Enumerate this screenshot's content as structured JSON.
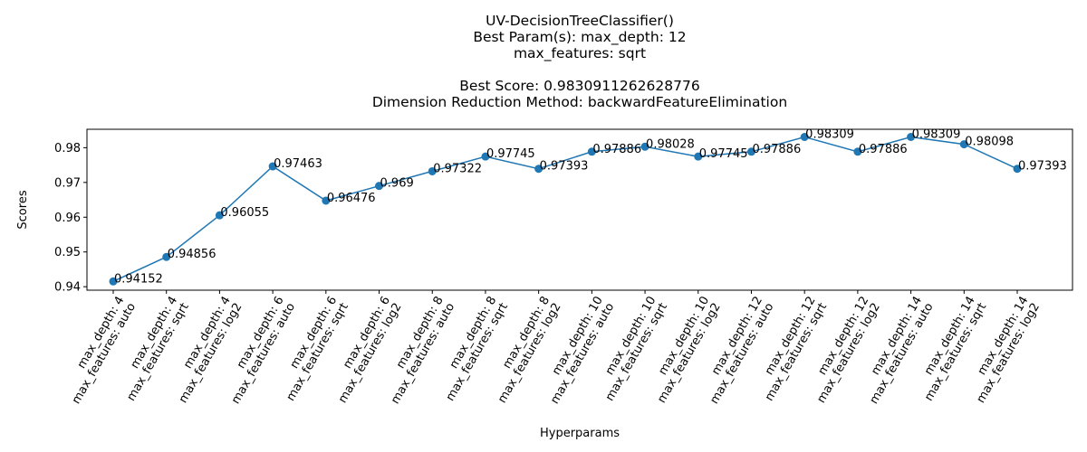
{
  "chart_data": {
    "type": "line",
    "title_lines": [
      "UV-DecisionTreeClassifier()",
      "Best Param(s): max_depth: 12",
      "max_features: sqrt",
      "",
      "Best Score: 0.9830911262628776",
      "Dimension Reduction Method: backwardFeatureElimination"
    ],
    "xlabel": "Hyperparams",
    "ylabel": "Scores",
    "categories": [
      [
        "max_depth: 4",
        "max_features: auto"
      ],
      [
        "max_depth: 4",
        "max_features: sqrt"
      ],
      [
        "max_depth: 4",
        "max_features: log2"
      ],
      [
        "max_depth: 6",
        "max_features: auto"
      ],
      [
        "max_depth: 6",
        "max_features: sqrt"
      ],
      [
        "max_depth: 6",
        "max_features: log2"
      ],
      [
        "max_depth: 8",
        "max_features: auto"
      ],
      [
        "max_depth: 8",
        "max_features: sqrt"
      ],
      [
        "max_depth: 8",
        "max_features: log2"
      ],
      [
        "max_depth: 10",
        "max_features: auto"
      ],
      [
        "max_depth: 10",
        "max_features: sqrt"
      ],
      [
        "max_depth: 10",
        "max_features: log2"
      ],
      [
        "max_depth: 12",
        "max_features: auto"
      ],
      [
        "max_depth: 12",
        "max_features: sqrt"
      ],
      [
        "max_depth: 12",
        "max_features: log2"
      ],
      [
        "max_depth: 14",
        "max_features: auto"
      ],
      [
        "max_depth: 14",
        "max_features: sqrt"
      ],
      [
        "max_depth: 14",
        "max_features: log2"
      ]
    ],
    "values": [
      0.94152,
      0.94856,
      0.96055,
      0.97463,
      0.96476,
      0.969,
      0.97322,
      0.97745,
      0.97393,
      0.97886,
      0.98028,
      0.97745,
      0.97886,
      0.98309,
      0.97886,
      0.98309,
      0.98098,
      0.97393
    ],
    "data_labels": [
      "0.94152",
      "0.94856",
      "0.96055",
      "0.97463",
      "0.96476",
      "0.969",
      "0.97322",
      "0.97745",
      "0.97393",
      "0.97886",
      "0.98028",
      "0.97745",
      "0.97886",
      "0.98309",
      "0.97886",
      "0.98309",
      "0.98098",
      "0.97393"
    ],
    "yticks": [
      0.94,
      0.95,
      0.96,
      0.97,
      0.98
    ],
    "ytick_labels": [
      "0.94",
      "0.95",
      "0.96",
      "0.97",
      "0.98"
    ],
    "ylim": [
      0.939,
      0.9853
    ],
    "xtick_rotation_deg": 60,
    "grid": false,
    "line_color": "#1f77b4",
    "marker": "circle"
  }
}
